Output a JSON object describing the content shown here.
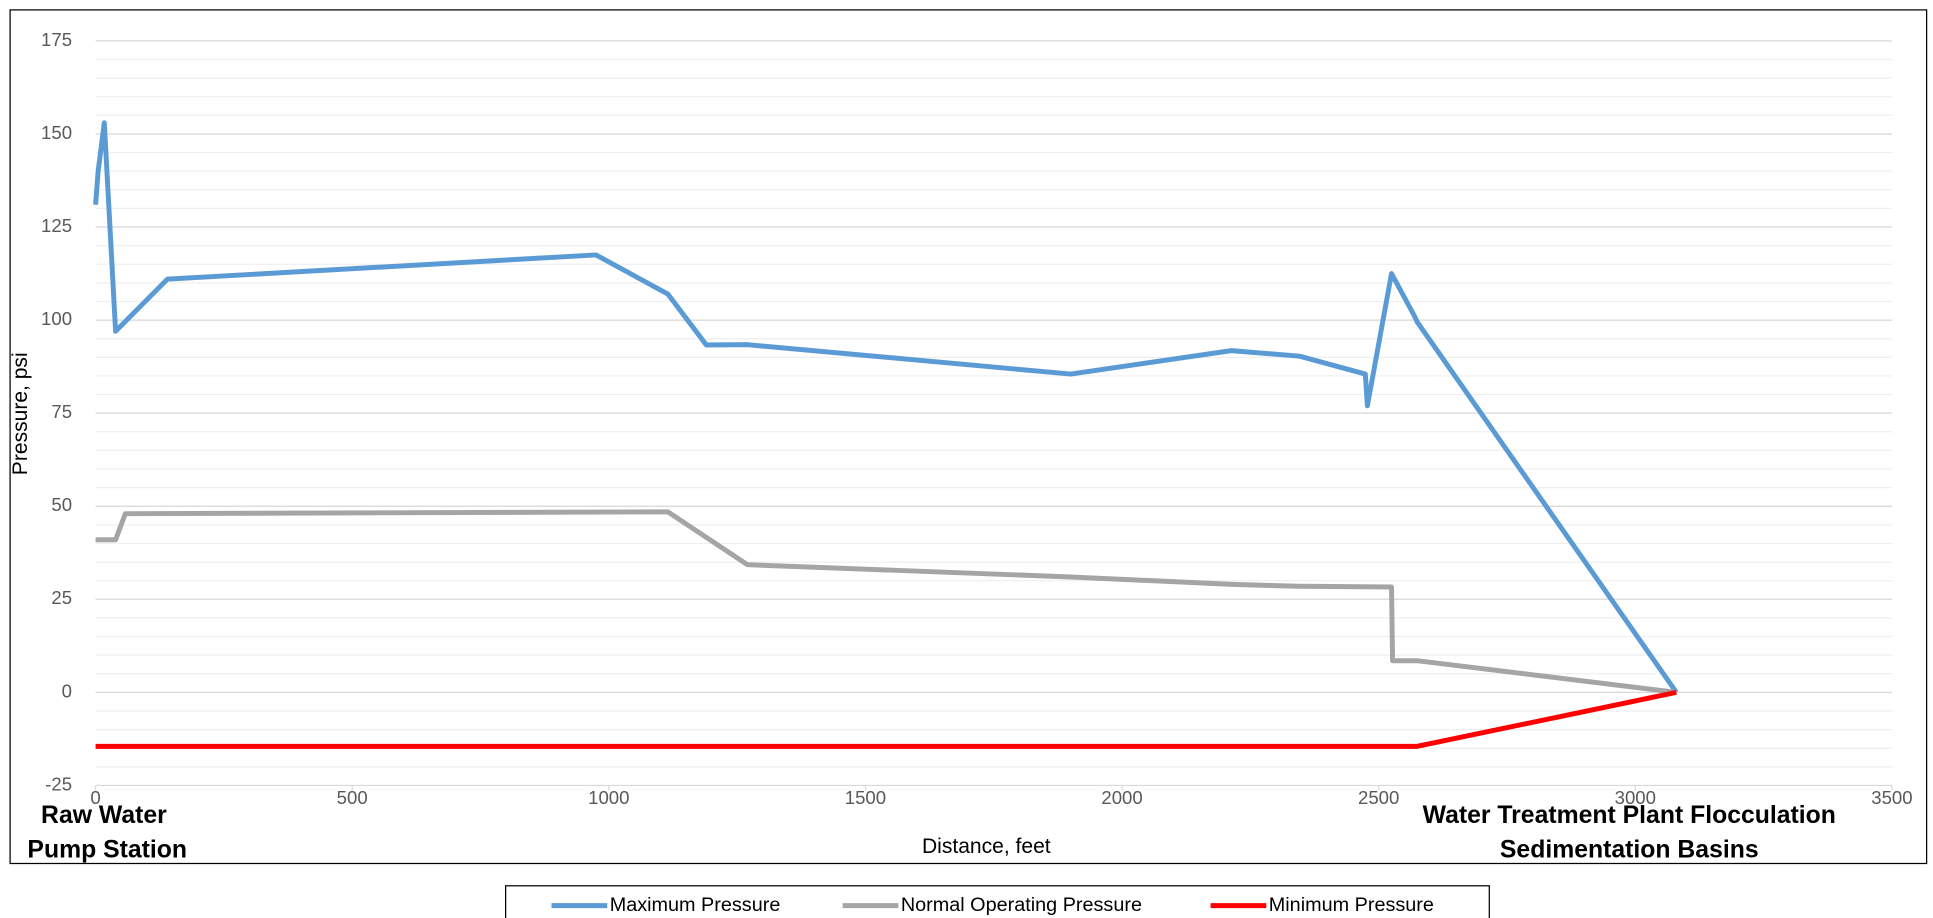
{
  "chart_data": {
    "type": "line",
    "xlabel": "Distance, feet",
    "ylabel": "Pressure, psi",
    "xlim": [
      0,
      3500
    ],
    "xticks": [
      0,
      500,
      1000,
      1500,
      2000,
      2500,
      3000,
      3500
    ],
    "ylim": [
      -25,
      175
    ],
    "yticks": [
      -25,
      0,
      25,
      50,
      75,
      100,
      125,
      150,
      175
    ],
    "grid": true,
    "minor_grid": true,
    "legend": "bottom",
    "annotations": [
      {
        "lines": [
          "Raw Water",
          "Pump Station"
        ]
      },
      {
        "lines": [
          "Water Treatment Plant Flocculation",
          "Sedimentation Basins"
        ]
      }
    ],
    "series": [
      {
        "name": "Maximum Pressure",
        "color": "#5b9bd5",
        "x": [
          0,
          5,
          17,
          39,
          140,
          975,
          1115,
          1190,
          1270,
          1900,
          2213,
          2346,
          2474,
          2478,
          2525,
          2570,
          2575,
          3080
        ],
        "values": [
          131,
          140,
          153,
          97,
          111,
          117.5,
          107,
          93.3,
          93.4,
          85.5,
          91.8,
          90.3,
          85.5,
          77,
          112.5,
          101,
          99.5,
          0
        ]
      },
      {
        "name": "Normal Operating Pressure",
        "color": "#a5a5a5",
        "x": [
          0,
          39,
          58,
          1115,
          1270,
          1900,
          2215,
          2345,
          2525,
          2527,
          2575,
          3080
        ],
        "values": [
          41,
          41,
          48,
          48.5,
          34.3,
          31,
          29,
          28.5,
          28.3,
          8.5,
          8.5,
          0
        ]
      },
      {
        "name": "Minimum Pressure",
        "color": "#ff0000",
        "x": [
          0,
          2575,
          3080
        ],
        "values": [
          -14.5,
          -14.5,
          0
        ]
      }
    ]
  }
}
